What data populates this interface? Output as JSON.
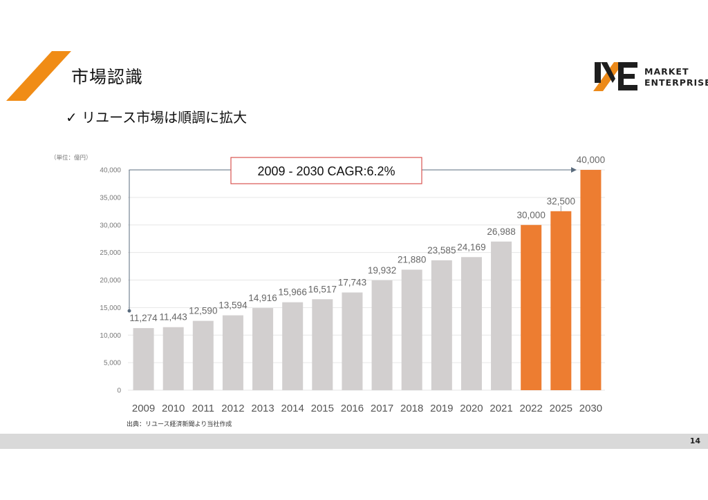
{
  "header": {
    "title": "市場認識",
    "subtitle": "✓ リユース市場は順調に拡大"
  },
  "logo": {
    "line1": "MARKET",
    "line2": "ENTERPRISE",
    "accent_color": "#ec8a1a"
  },
  "chart_data": {
    "type": "bar",
    "unit_label": "（単位：億円）",
    "categories": [
      "2009",
      "2010",
      "2011",
      "2012",
      "2013",
      "2014",
      "2015",
      "2016",
      "2017",
      "2018",
      "2019",
      "2020",
      "2021",
      "2022",
      "2025",
      "2030"
    ],
    "values": [
      11274,
      11443,
      12590,
      13594,
      14916,
      15966,
      16517,
      17743,
      19932,
      21880,
      23585,
      24169,
      26988,
      30000,
      32500,
      40000
    ],
    "data_labels": [
      "11,274",
      "11,443",
      "12,590",
      "13,594",
      "14,916",
      "15,966",
      "16,517",
      "17,743",
      "19,932",
      "21,880",
      "23,585",
      "24,169",
      "26,988",
      "30,000",
      "32,500",
      "40,000"
    ],
    "forecast_from_index": 13,
    "ylim": [
      0,
      40000
    ],
    "yticks": [
      0,
      5000,
      10000,
      15000,
      20000,
      25000,
      30000,
      35000,
      40000
    ],
    "ytick_labels": [
      "0",
      "5,000",
      "10,000",
      "15,000",
      "20,000",
      "25,000",
      "30,000",
      "35,000",
      "40,000"
    ],
    "grid": true,
    "colors": {
      "actual": "#d2cfcf",
      "forecast": "#ed7d31",
      "callout_border": "#d9534f",
      "arrow": "#5a6b7d"
    },
    "annotation": "2009 - 2030  CAGR:6.2%"
  },
  "footer": {
    "source": "出典：リユース経済新聞より当社作成",
    "page_number": "14"
  }
}
